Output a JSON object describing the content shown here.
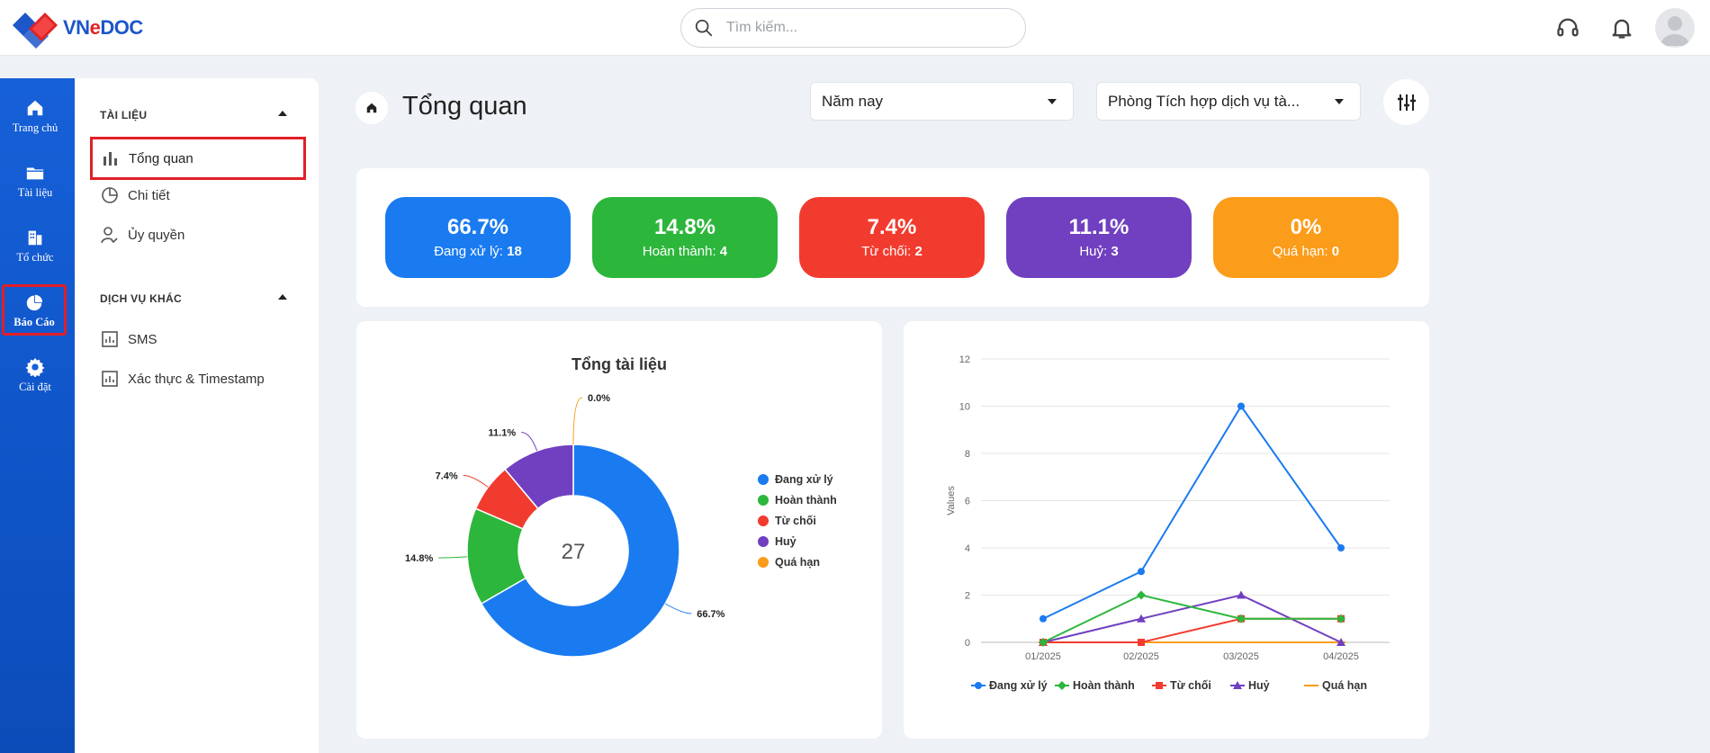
{
  "brand": {
    "name_prefix": "VN",
    "name_e": "e",
    "name_suffix": "DOC"
  },
  "search": {
    "placeholder": "Tìm kiếm..."
  },
  "rail": [
    {
      "label": "Trang chủ"
    },
    {
      "label": "Tài liệu"
    },
    {
      "label": "Tổ chức"
    },
    {
      "label": "Báo Cáo"
    },
    {
      "label": "Cài đặt"
    }
  ],
  "subnav": {
    "section1": "TÀI LIỆU",
    "section2": "DỊCH VỤ KHÁC",
    "items": [
      {
        "label": "Tổng quan"
      },
      {
        "label": "Chi tiết"
      },
      {
        "label": "Ủy quyền"
      },
      {
        "label": "SMS"
      },
      {
        "label": "Xác thực & Timestamp"
      }
    ]
  },
  "header": {
    "title": "Tổng quan",
    "period": "Năm nay",
    "department": "Phòng Tích hợp dịch vụ tà..."
  },
  "stats": [
    {
      "pct": "66.7%",
      "label": "Đang xử lý: ",
      "count": "18",
      "color": "#1a7bf0"
    },
    {
      "pct": "14.8%",
      "label": "Hoàn thành: ",
      "count": "4",
      "color": "#2db63c"
    },
    {
      "pct": "7.4%",
      "label": "Từ chối: ",
      "count": "2",
      "color": "#f23b2f"
    },
    {
      "pct": "11.1%",
      "label": "Huỷ: ",
      "count": "3",
      "color": "#7040c0"
    },
    {
      "pct": "0%",
      "label": "Quá hạn: ",
      "count": "0",
      "color": "#fb9c1a"
    }
  ],
  "chart_data": [
    {
      "type": "pie",
      "title": "Tổng tài liệu",
      "center_label": "27",
      "labels": [
        "Đang xử lý",
        "Hoàn thành",
        "Từ chối",
        "Huỷ",
        "Quá hạn"
      ],
      "values": [
        18,
        4,
        2,
        3,
        0
      ],
      "percent_labels": [
        "66.7%",
        "14.8%",
        "7.4%",
        "11.1%",
        "0.0%"
      ],
      "colors": [
        "#1a7bf0",
        "#2db63c",
        "#f23b2f",
        "#7040c0",
        "#fb9c1a"
      ],
      "legend": "right"
    },
    {
      "type": "line",
      "categories": [
        "01/2025",
        "02/2025",
        "03/2025",
        "04/2025"
      ],
      "ylabel": "Values",
      "ylim": [
        0,
        12
      ],
      "yticks": [
        0,
        2,
        4,
        6,
        8,
        10,
        12
      ],
      "grid": true,
      "legend": "bottom",
      "series": [
        {
          "name": "Đang xử lý",
          "values": [
            1,
            3,
            10,
            4
          ],
          "color": "#1a7bf0",
          "marker": "circle"
        },
        {
          "name": "Hoàn thành",
          "values": [
            0,
            2,
            1,
            1
          ],
          "color": "#2db63c",
          "marker": "diamond"
        },
        {
          "name": "Từ chối",
          "values": [
            0,
            0,
            1,
            1
          ],
          "color": "#f23b2f",
          "marker": "square"
        },
        {
          "name": "Huỷ",
          "values": [
            0,
            1,
            2,
            0
          ],
          "color": "#7040c0",
          "marker": "triangle"
        },
        {
          "name": "Quá hạn",
          "values": [
            0,
            0,
            0,
            0
          ],
          "color": "#fb9c1a",
          "marker": "line"
        }
      ]
    }
  ]
}
